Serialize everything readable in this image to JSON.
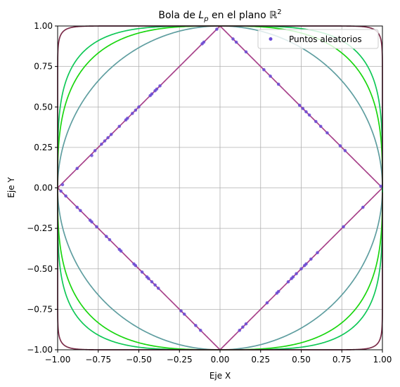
{
  "chart_data": {
    "type": "line",
    "title": "Bola de",
    "title_symbol": "L",
    "title_subscript": "p",
    "title_rest": " en el plano ",
    "title_space": "ℝ",
    "title_superscript": "2",
    "xlabel": "Eje X",
    "ylabel": "Eje Y",
    "xlim": [
      -1.0,
      1.0
    ],
    "ylim": [
      -1.0,
      1.0
    ],
    "xticks": [
      -1.0,
      -0.75,
      -0.5,
      -0.25,
      0.0,
      0.25,
      0.5,
      0.75,
      1.0
    ],
    "yticks": [
      -1.0,
      -0.75,
      -0.5,
      -0.25,
      0.0,
      0.25,
      0.5,
      0.75,
      1.0
    ],
    "xtick_labels": [
      "−1.00",
      "−0.75",
      "−0.50",
      "−0.25",
      "0.00",
      "0.25",
      "0.50",
      "0.75",
      "1.00"
    ],
    "ytick_labels": [
      "−1.00",
      "−0.75",
      "−0.50",
      "−0.25",
      "0.00",
      "0.25",
      "0.50",
      "0.75",
      "1.00"
    ],
    "grid": true,
    "legend": {
      "placement": "top-right",
      "entries": [
        "Puntos aleatorios"
      ]
    },
    "series": [
      {
        "p": 1,
        "color": "#a8428a"
      },
      {
        "p": 2,
        "color": "#5f9ea0"
      },
      {
        "p": 3,
        "color": "#1ad60f"
      },
      {
        "p": 4,
        "color": "#10c857"
      },
      {
        "p": 20,
        "color": "#7b2d4a"
      }
    ],
    "scatter": {
      "name": "Puntos aleatorios",
      "color": "#6a4bd6",
      "points": [
        [
          -0.97,
          0.02
        ],
        [
          -0.88,
          0.12
        ],
        [
          -0.79,
          0.2
        ],
        [
          -0.77,
          0.23
        ],
        [
          -0.73,
          0.27
        ],
        [
          -0.71,
          0.29
        ],
        [
          -0.69,
          0.31
        ],
        [
          -0.67,
          0.33
        ],
        [
          -0.62,
          0.38
        ],
        [
          -0.58,
          0.42
        ],
        [
          -0.57,
          0.43
        ],
        [
          -0.54,
          0.46
        ],
        [
          -0.52,
          0.48
        ],
        [
          -0.5,
          0.5
        ],
        [
          -0.43,
          0.57
        ],
        [
          -0.42,
          0.58
        ],
        [
          -0.4,
          0.6
        ],
        [
          -0.39,
          0.61
        ],
        [
          -0.37,
          0.63
        ],
        [
          -0.1,
          0.9
        ],
        [
          -0.11,
          0.89
        ],
        [
          -0.02,
          0.98
        ],
        [
          0.08,
          0.92
        ],
        [
          0.1,
          0.9
        ],
        [
          0.16,
          0.84
        ],
        [
          0.27,
          0.73
        ],
        [
          0.31,
          0.69
        ],
        [
          0.36,
          0.64
        ],
        [
          0.49,
          0.51
        ],
        [
          0.51,
          0.49
        ],
        [
          0.53,
          0.47
        ],
        [
          0.55,
          0.45
        ],
        [
          0.59,
          0.41
        ],
        [
          0.62,
          0.38
        ],
        [
          0.66,
          0.34
        ],
        [
          0.74,
          0.26
        ],
        [
          0.77,
          0.23
        ],
        [
          0.99,
          0.01
        ],
        [
          -0.98,
          -0.02
        ],
        [
          -0.95,
          -0.05
        ],
        [
          -0.88,
          -0.12
        ],
        [
          -0.86,
          -0.14
        ],
        [
          -0.8,
          -0.2
        ],
        [
          -0.79,
          -0.21
        ],
        [
          -0.76,
          -0.24
        ],
        [
          -0.7,
          -0.3
        ],
        [
          -0.68,
          -0.32
        ],
        [
          -0.62,
          -0.38
        ],
        [
          -0.61,
          -0.39
        ],
        [
          -0.53,
          -0.47
        ],
        [
          -0.52,
          -0.48
        ],
        [
          -0.48,
          -0.52
        ],
        [
          -0.45,
          -0.55
        ],
        [
          -0.44,
          -0.56
        ],
        [
          -0.42,
          -0.58
        ],
        [
          -0.4,
          -0.6
        ],
        [
          -0.38,
          -0.62
        ],
        [
          -0.24,
          -0.76
        ],
        [
          -0.22,
          -0.78
        ],
        [
          -0.15,
          -0.85
        ],
        [
          -0.12,
          -0.88
        ],
        [
          0.88,
          -0.12
        ],
        [
          0.76,
          -0.24
        ],
        [
          0.6,
          -0.4
        ],
        [
          0.56,
          -0.44
        ],
        [
          0.53,
          -0.47
        ],
        [
          0.52,
          -0.48
        ],
        [
          0.5,
          -0.5
        ],
        [
          0.47,
          -0.53
        ],
        [
          0.45,
          -0.55
        ],
        [
          0.44,
          -0.56
        ],
        [
          0.42,
          -0.58
        ],
        [
          0.36,
          -0.64
        ],
        [
          0.35,
          -0.65
        ],
        [
          0.29,
          -0.71
        ],
        [
          0.16,
          -0.84
        ],
        [
          0.14,
          -0.86
        ],
        [
          0.12,
          -0.88
        ]
      ]
    }
  }
}
